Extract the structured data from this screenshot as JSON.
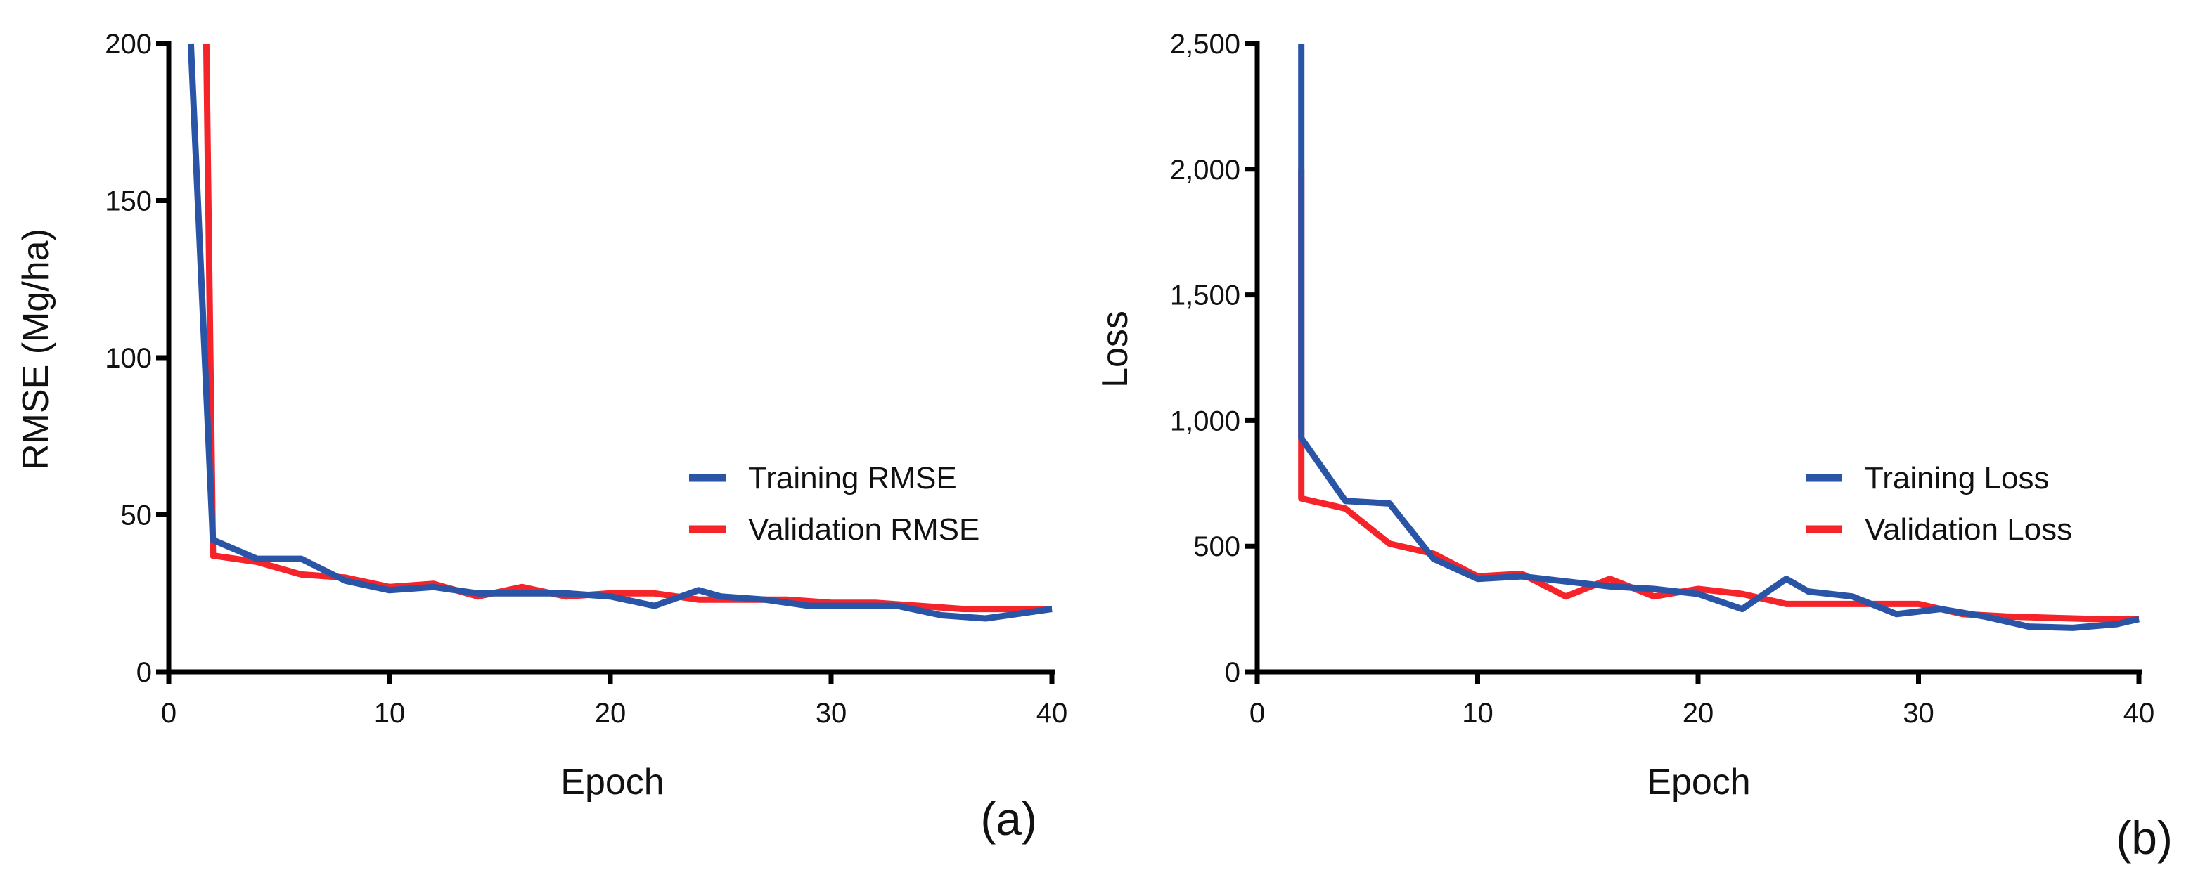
{
  "chart_data": [
    {
      "type": "line",
      "panel_label": "(a)",
      "xlabel": "Epoch",
      "ylabel": "RMSE (Mg/ha)",
      "xlim": [
        0,
        40
      ],
      "ylim": [
        0,
        200
      ],
      "x_ticks": [
        0,
        10,
        20,
        30,
        40
      ],
      "y_ticks": [
        0,
        50,
        100,
        150,
        200
      ],
      "x_tick_labels": [
        "0",
        "10",
        "20",
        "30",
        "40"
      ],
      "y_tick_labels": [
        "0",
        "50",
        "100",
        "150",
        "200"
      ],
      "legend_position": "right",
      "series": [
        {
          "name": "Validation RMSE",
          "color": "#f5232a",
          "x": [
            1.7,
            2,
            4,
            6,
            8,
            10,
            12,
            14,
            16,
            18,
            20,
            22,
            24,
            26,
            28,
            30,
            32,
            34,
            36,
            38,
            40
          ],
          "y": [
            200,
            37,
            35,
            31,
            30,
            27,
            28,
            24,
            27,
            24,
            25,
            25,
            23,
            23,
            23,
            22,
            22,
            21,
            20,
            20,
            20
          ]
        },
        {
          "name": "Training RMSE",
          "color": "#2a55a6",
          "x": [
            1,
            2,
            4,
            6,
            8,
            10,
            12,
            14,
            16,
            18,
            20,
            22,
            24,
            25,
            27,
            29,
            31,
            33,
            35,
            37,
            39,
            40
          ],
          "y": [
            200,
            42,
            36,
            36,
            29,
            26,
            27,
            25,
            25,
            25,
            24,
            21,
            26,
            24,
            23,
            21,
            21,
            21,
            18,
            17,
            19,
            20
          ]
        }
      ]
    },
    {
      "type": "line",
      "panel_label": "(b)",
      "xlabel": "Epoch",
      "ylabel": "Loss",
      "xlim": [
        0,
        40
      ],
      "ylim": [
        0,
        2500
      ],
      "x_ticks": [
        0,
        10,
        20,
        30,
        40
      ],
      "y_ticks": [
        0,
        500,
        1000,
        1500,
        2000,
        2500
      ],
      "x_tick_labels": [
        "0",
        "10",
        "20",
        "30",
        "40"
      ],
      "y_tick_labels": [
        "0",
        "500",
        "1,000",
        "1,500",
        "2,000",
        "2,500"
      ],
      "legend_position": "right",
      "series": [
        {
          "name": "Validation Loss",
          "color": "#f5232a",
          "x": [
            2,
            2,
            4,
            6,
            8,
            10,
            12,
            14,
            16,
            18,
            20,
            22,
            24,
            26,
            28,
            30,
            32,
            34,
            36,
            38,
            40
          ],
          "y": [
            2000,
            690,
            650,
            510,
            470,
            380,
            390,
            300,
            370,
            300,
            330,
            310,
            270,
            270,
            270,
            270,
            230,
            220,
            215,
            210,
            210
          ]
        },
        {
          "name": "Training Loss",
          "color": "#2a55a6",
          "x": [
            2,
            2,
            4,
            6,
            8,
            10,
            12,
            14,
            16,
            18,
            20,
            22,
            24,
            25,
            27,
            29,
            31,
            33,
            35,
            37,
            39,
            40
          ],
          "y": [
            2500,
            930,
            680,
            670,
            450,
            370,
            380,
            360,
            340,
            330,
            310,
            250,
            370,
            320,
            300,
            230,
            250,
            220,
            180,
            175,
            190,
            210
          ]
        }
      ]
    }
  ]
}
